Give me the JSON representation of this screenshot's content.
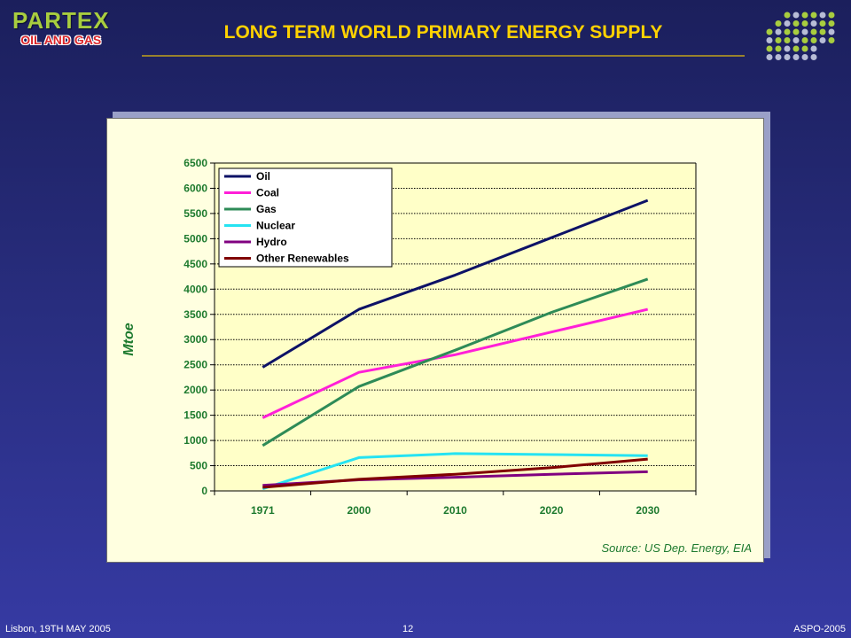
{
  "header": {
    "brand_name": "PARTEX",
    "brand_sub": "OIL AND GAS",
    "title": "LONG TERM WORLD PRIMARY ENERGY SUPPLY"
  },
  "source_note": "Source: US Dep. Energy, EIA",
  "footer": {
    "left": "Lisbon, 19TH MAY 2005",
    "page": "12",
    "right": "ASPO-2005"
  },
  "colors": {
    "title": "#ffd200",
    "brand": "#a8cd3f",
    "brand_sub": "#d9242a",
    "axis_text": "#1d7a2e",
    "plot_bg": "#ffffc8",
    "panel_bg": "#ffffe0",
    "dot_green": "#a8cd3f",
    "dot_grey": "#b7bcd6"
  },
  "chart_data": {
    "type": "line",
    "title": "",
    "xlabel": "",
    "ylabel": "Mtoe",
    "ylim": [
      0,
      6500
    ],
    "yticks": [
      0,
      500,
      1000,
      1500,
      2000,
      2500,
      3000,
      3500,
      4000,
      4500,
      5000,
      5500,
      6000,
      6500
    ],
    "categories": [
      "1971",
      "2000",
      "2010",
      "2020",
      "2030"
    ],
    "grid": "horizontal",
    "legend_position": "top-left",
    "series": [
      {
        "name": "Oil",
        "color": "#0d1266",
        "values": [
          2450,
          3600,
          4280,
          5020,
          5760
        ]
      },
      {
        "name": "Coal",
        "color": "#ff1fd8",
        "values": [
          1450,
          2350,
          2700,
          3150,
          3600
        ]
      },
      {
        "name": "Gas",
        "color": "#2e8b57",
        "values": [
          900,
          2070,
          2790,
          3540,
          4200
        ]
      },
      {
        "name": "Nuclear",
        "color": "#26e3f2",
        "values": [
          40,
          660,
          740,
          720,
          700
        ]
      },
      {
        "name": "Hydro",
        "color": "#800080",
        "values": [
          110,
          220,
          270,
          330,
          380
        ]
      },
      {
        "name": "Other Renewables",
        "color": "#800000",
        "values": [
          70,
          230,
          330,
          460,
          630
        ]
      }
    ]
  }
}
